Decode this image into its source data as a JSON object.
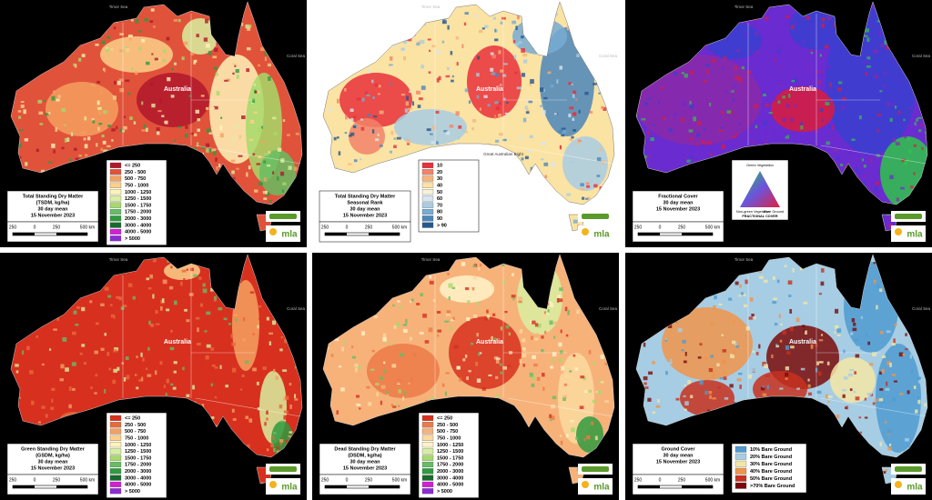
{
  "panels": [
    {
      "title": [
        "Total Standing Dry Matter",
        "(TSDM, kg/ha)",
        "30 day mean",
        "15 November 2023"
      ],
      "places": [
        "Timor Sea",
        "Coral Sea",
        "Australia"
      ],
      "legend": [
        {
          "label": "<= 250",
          "color": "#b2182b"
        },
        {
          "label": "250 - 500",
          "color": "#e0533a"
        },
        {
          "label": "500 - 750",
          "color": "#f4a060"
        },
        {
          "label": "750 - 1000",
          "color": "#fcd08a"
        },
        {
          "label": "1000 - 1250",
          "color": "#fff3b8"
        },
        {
          "label": "1250 - 1500",
          "color": "#d8efa0"
        },
        {
          "label": "1500 - 1750",
          "color": "#a6d96a"
        },
        {
          "label": "1750 - 2000",
          "color": "#66bd63"
        },
        {
          "label": "2000 - 3000",
          "color": "#2f9a3e"
        },
        {
          "label": "3000 - 4000",
          "color": "#17692c"
        },
        {
          "label": "4000 - 5000",
          "color": "#d21fd6"
        },
        {
          "label": "> 5000",
          "color": "#8e2bd8"
        }
      ],
      "scale": [
        "250",
        "0",
        "250",
        "500 km"
      ],
      "logo": "mla"
    },
    {
      "title": [
        "Total Standing Dry Matter",
        "Seasonal Rank",
        "30 day mean",
        "15 November 2023"
      ],
      "places": [
        "Timor Sea",
        "Coral Sea",
        "Australia",
        "Great Australian Bight"
      ],
      "legend": [
        {
          "label": "10",
          "color": "#e8303a"
        },
        {
          "label": "20",
          "color": "#f2836a"
        },
        {
          "label": "30",
          "color": "#f7b47a"
        },
        {
          "label": "40",
          "color": "#fbe3a4"
        },
        {
          "label": "50",
          "color": "#f6f2d8"
        },
        {
          "label": "60",
          "color": "#d6e6f0"
        },
        {
          "label": "70",
          "color": "#a9cce3"
        },
        {
          "label": "80",
          "color": "#77acd3"
        },
        {
          "label": "90",
          "color": "#4b86bb"
        },
        {
          "label": "> 90",
          "color": "#24578f"
        }
      ],
      "scale": [
        "250",
        "0",
        "250",
        "500 km"
      ],
      "logo": "mla"
    },
    {
      "title": [
        "Fractional Cover",
        "30 day mean",
        "15 November 2023"
      ],
      "places": [
        "Timor Sea",
        "Coral Sea",
        "Australia"
      ],
      "triangle": [
        "Green Vegetation",
        "Non-green Vegetation",
        "Bare Ground",
        "FRACTIONAL COVER"
      ],
      "map_colors": [
        "#6a2bd0",
        "#3a3fd0",
        "#d81c3c",
        "#2fc44a",
        "#8a2aa8"
      ],
      "scale": [
        "250",
        "0",
        "250",
        "500 km"
      ],
      "logo": "mla"
    },
    {
      "title": [
        "Green Standing Dry Matter",
        "(GSDM, kg/ha)",
        "30 day mean",
        "15 November 2023"
      ],
      "places": [
        "Timor Sea",
        "Coral Sea",
        "Australia"
      ],
      "legend": [
        {
          "label": "<= 250",
          "color": "#d7301f"
        },
        {
          "label": "250 - 500",
          "color": "#e86a3a"
        },
        {
          "label": "500 - 750",
          "color": "#f4a060"
        },
        {
          "label": "750 - 1000",
          "color": "#fcd08a"
        },
        {
          "label": "1000 - 1250",
          "color": "#fff3b8"
        },
        {
          "label": "1250 - 1500",
          "color": "#d8efa0"
        },
        {
          "label": "1500 - 1750",
          "color": "#a6d96a"
        },
        {
          "label": "1750 - 2000",
          "color": "#66bd63"
        },
        {
          "label": "2000 - 3000",
          "color": "#2f9a3e"
        },
        {
          "label": "3000 - 4000",
          "color": "#17692c"
        },
        {
          "label": "4000 - 5000",
          "color": "#d21fd6"
        },
        {
          "label": "> 5000",
          "color": "#8e2bd8"
        }
      ],
      "scale": [
        "250",
        "0",
        "250",
        "500 km"
      ],
      "logo": "mla"
    },
    {
      "title": [
        "Dead Standing Dry Matter",
        "(DSDM, kg/ha)",
        "30 day mean",
        "15 November 2023"
      ],
      "places": [
        "Timor Sea",
        "Coral Sea",
        "Australia"
      ],
      "legend": [
        {
          "label": "<= 250",
          "color": "#d7301f"
        },
        {
          "label": "250 - 500",
          "color": "#ec7a48"
        },
        {
          "label": "500 - 750",
          "color": "#f7b27a"
        },
        {
          "label": "750 - 1000",
          "color": "#fcd9a0"
        },
        {
          "label": "1000 - 1250",
          "color": "#fff3c8"
        },
        {
          "label": "1250 - 1500",
          "color": "#d8efa0"
        },
        {
          "label": "1500 - 1750",
          "color": "#a6d96a"
        },
        {
          "label": "1750 - 2000",
          "color": "#66bd63"
        },
        {
          "label": "2000 - 3000",
          "color": "#2f9a3e"
        },
        {
          "label": "3000 - 4000",
          "color": "#17692c"
        },
        {
          "label": "4000 - 5000",
          "color": "#d21fd6"
        },
        {
          "label": "> 5000",
          "color": "#8e2bd8"
        }
      ],
      "scale": [
        "250",
        "0",
        "250",
        "500 km"
      ],
      "logo": "mla"
    },
    {
      "title": [
        "Ground Cover",
        "30 day mean",
        "15 November 2023"
      ],
      "places": [
        "Timor Sea",
        "Coral Sea",
        "Australia"
      ],
      "legend": [
        {
          "label": "10% Bare Ground",
          "color": "#4f9bd1"
        },
        {
          "label": "20% Bare Ground",
          "color": "#a6cde3"
        },
        {
          "label": "30% Bare Ground",
          "color": "#f3e6a6"
        },
        {
          "label": "40% Bare Ground",
          "color": "#f0944a"
        },
        {
          "label": "50% Bare Ground",
          "color": "#c8301e"
        },
        {
          "label": ">70% Bare Ground",
          "color": "#7a0a0a"
        }
      ],
      "scale": [
        "250",
        "0",
        "250",
        "500 km"
      ],
      "logo": "mla"
    }
  ]
}
